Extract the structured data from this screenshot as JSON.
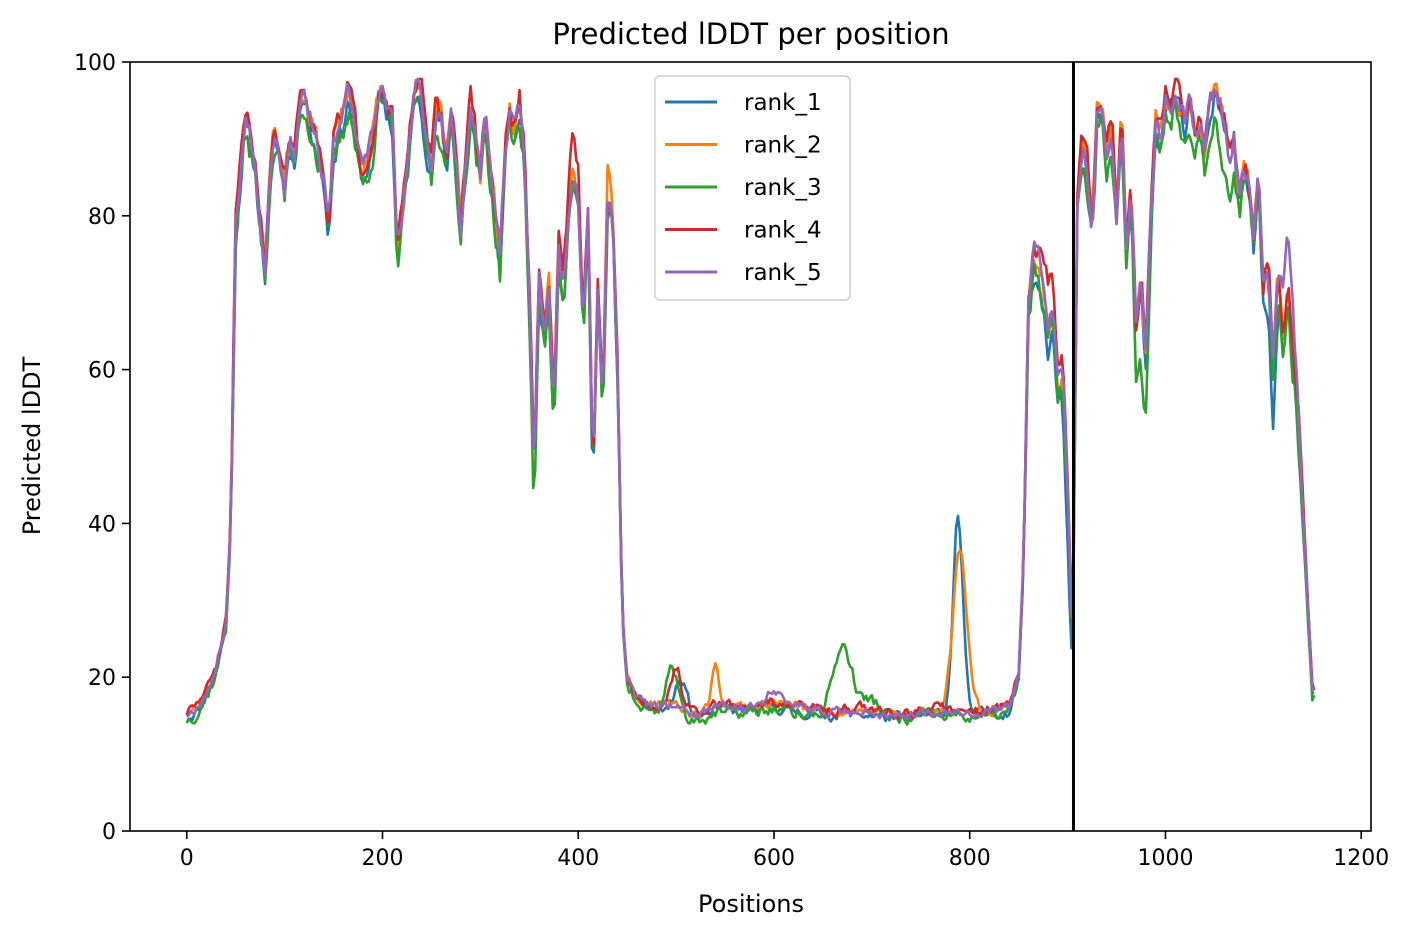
{
  "chart_data": {
    "type": "line",
    "title": "Predicted lDDT per position",
    "xlabel": "Positions",
    "ylabel": "Predicted lDDT",
    "xlim": [
      -58,
      1210
    ],
    "ylim": [
      0,
      100
    ],
    "xticks": [
      0,
      200,
      400,
      600,
      800,
      1000,
      1200
    ],
    "yticks": [
      0,
      20,
      40,
      60,
      80,
      100
    ],
    "grid": false,
    "legend_position": "top-center",
    "vline": {
      "x": 906,
      "color": "#000000"
    },
    "base_profile": [
      [
        0,
        15
      ],
      [
        10,
        16
      ],
      [
        20,
        18
      ],
      [
        30,
        21
      ],
      [
        40,
        27
      ],
      [
        45,
        40
      ],
      [
        50,
        78
      ],
      [
        55,
        86
      ],
      [
        60,
        92
      ],
      [
        65,
        90
      ],
      [
        70,
        86
      ],
      [
        75,
        80
      ],
      [
        80,
        73
      ],
      [
        85,
        86
      ],
      [
        90,
        91
      ],
      [
        95,
        88
      ],
      [
        100,
        84
      ],
      [
        105,
        90
      ],
      [
        110,
        88
      ],
      [
        115,
        95
      ],
      [
        120,
        96
      ],
      [
        130,
        91
      ],
      [
        140,
        85
      ],
      [
        145,
        78
      ],
      [
        150,
        89
      ],
      [
        160,
        93
      ],
      [
        165,
        96
      ],
      [
        170,
        93
      ],
      [
        175,
        88
      ],
      [
        180,
        85
      ],
      [
        190,
        90
      ],
      [
        195,
        95
      ],
      [
        200,
        96
      ],
      [
        210,
        92
      ],
      [
        215,
        75
      ],
      [
        220,
        80
      ],
      [
        230,
        92
      ],
      [
        235,
        97
      ],
      [
        240,
        95
      ],
      [
        245,
        90
      ],
      [
        250,
        86
      ],
      [
        255,
        94
      ],
      [
        260,
        92
      ],
      [
        265,
        86
      ],
      [
        270,
        93
      ],
      [
        275,
        88
      ],
      [
        280,
        78
      ],
      [
        285,
        88
      ],
      [
        290,
        94
      ],
      [
        295,
        90
      ],
      [
        300,
        85
      ],
      [
        305,
        93
      ],
      [
        310,
        86
      ],
      [
        315,
        80
      ],
      [
        320,
        74
      ],
      [
        325,
        88
      ],
      [
        330,
        93
      ],
      [
        335,
        90
      ],
      [
        340,
        94
      ],
      [
        345,
        88
      ],
      [
        350,
        70
      ],
      [
        355,
        46
      ],
      [
        360,
        72
      ],
      [
        365,
        64
      ],
      [
        370,
        70
      ],
      [
        375,
        55
      ],
      [
        380,
        76
      ],
      [
        385,
        70
      ],
      [
        390,
        80
      ],
      [
        395,
        86
      ],
      [
        400,
        82
      ],
      [
        405,
        66
      ],
      [
        410,
        80
      ],
      [
        415,
        46
      ],
      [
        420,
        70
      ],
      [
        425,
        55
      ],
      [
        430,
        82
      ],
      [
        435,
        80
      ],
      [
        440,
        60
      ],
      [
        445,
        28
      ],
      [
        450,
        20
      ],
      [
        460,
        17
      ],
      [
        480,
        16
      ],
      [
        500,
        16
      ],
      [
        520,
        15
      ],
      [
        540,
        16
      ],
      [
        560,
        16
      ],
      [
        580,
        16
      ],
      [
        600,
        16.5
      ],
      [
        620,
        16
      ],
      [
        640,
        15.5
      ],
      [
        660,
        15.5
      ],
      [
        680,
        15.5
      ],
      [
        700,
        15.5
      ],
      [
        720,
        15
      ],
      [
        740,
        15
      ],
      [
        760,
        15.5
      ],
      [
        780,
        15.5
      ],
      [
        800,
        15.5
      ],
      [
        820,
        15.5
      ],
      [
        840,
        16
      ],
      [
        850,
        20
      ],
      [
        855,
        35
      ],
      [
        860,
        68
      ],
      [
        865,
        74
      ],
      [
        870,
        72
      ],
      [
        875,
        70
      ],
      [
        880,
        64
      ],
      [
        885,
        68
      ],
      [
        890,
        58
      ],
      [
        895,
        60
      ],
      [
        900,
        45
      ],
      [
        905,
        24
      ],
      [
        910,
        82
      ],
      [
        915,
        90
      ],
      [
        920,
        86
      ],
      [
        925,
        78
      ],
      [
        930,
        93
      ],
      [
        935,
        94
      ],
      [
        940,
        88
      ],
      [
        945,
        92
      ],
      [
        950,
        80
      ],
      [
        955,
        93
      ],
      [
        960,
        75
      ],
      [
        965,
        82
      ],
      [
        970,
        65
      ],
      [
        975,
        72
      ],
      [
        980,
        62
      ],
      [
        985,
        80
      ],
      [
        990,
        92
      ],
      [
        995,
        90
      ],
      [
        1000,
        95
      ],
      [
        1005,
        93
      ],
      [
        1010,
        96
      ],
      [
        1015,
        94
      ],
      [
        1020,
        92
      ],
      [
        1025,
        95
      ],
      [
        1030,
        90
      ],
      [
        1035,
        92
      ],
      [
        1040,
        88
      ],
      [
        1045,
        94
      ],
      [
        1050,
        96
      ],
      [
        1055,
        95
      ],
      [
        1060,
        92
      ],
      [
        1065,
        88
      ],
      [
        1070,
        90
      ],
      [
        1075,
        82
      ],
      [
        1080,
        86
      ],
      [
        1085,
        84
      ],
      [
        1090,
        76
      ],
      [
        1095,
        85
      ],
      [
        1100,
        70
      ],
      [
        1105,
        74
      ],
      [
        1110,
        60
      ],
      [
        1115,
        72
      ],
      [
        1120,
        64
      ],
      [
        1125,
        70
      ],
      [
        1130,
        62
      ],
      [
        1135,
        55
      ],
      [
        1140,
        42
      ],
      [
        1145,
        30
      ],
      [
        1150,
        18
      ]
    ],
    "series": [
      {
        "name": "rank_1",
        "color": "#1f77b4",
        "seed": 11,
        "noise": 3.2,
        "offset": -0.8,
        "bumps": [
          [
            505,
            4,
            6
          ],
          [
            788,
            26,
            5
          ],
          [
            900,
            -8,
            4
          ],
          [
            1110,
            -8,
            5
          ]
        ]
      },
      {
        "name": "rank_2",
        "color": "#ff7f0e",
        "seed": 23,
        "noise": 2.8,
        "offset": 0.6,
        "bumps": [
          [
            540,
            5,
            4
          ],
          [
            790,
            21,
            7
          ],
          [
            430,
            4,
            6
          ]
        ]
      },
      {
        "name": "rank_3",
        "color": "#2ca02c",
        "seed": 37,
        "noise": 3.6,
        "offset": -1.5,
        "bumps": [
          [
            495,
            6,
            6
          ],
          [
            670,
            9,
            10
          ],
          [
            700,
            2,
            10
          ],
          [
            355,
            -4,
            4
          ],
          [
            975,
            -10,
            5
          ],
          [
            1060,
            -4,
            8
          ]
        ]
      },
      {
        "name": "rank_4",
        "color": "#d62728",
        "seed": 51,
        "noise": 3.0,
        "offset": 1.0,
        "bumps": [
          [
            500,
            5,
            5
          ],
          [
            395,
            4,
            6
          ],
          [
            880,
            6,
            5
          ],
          [
            1140,
            2,
            5
          ]
        ]
      },
      {
        "name": "rank_5",
        "color": "#9467bd",
        "seed": 67,
        "noise": 2.6,
        "offset": 0.3,
        "bumps": [
          [
            600,
            2,
            8
          ],
          [
            870,
            3,
            5
          ],
          [
            1125,
            8,
            6
          ]
        ]
      }
    ]
  }
}
